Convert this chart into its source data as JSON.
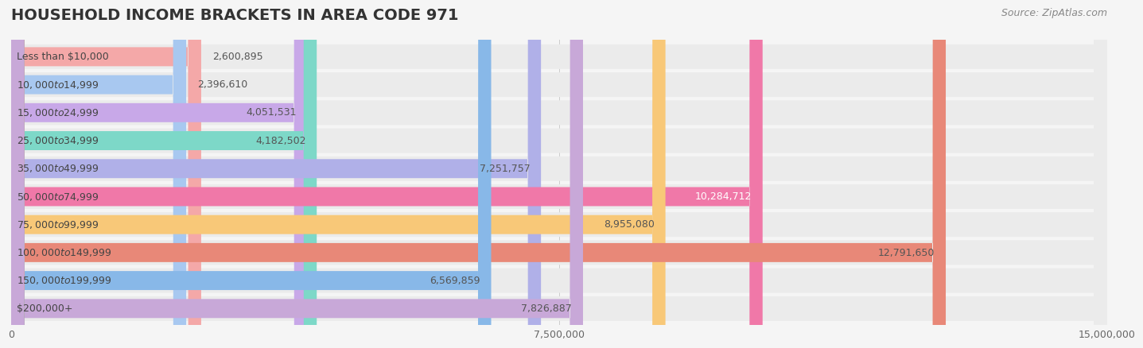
{
  "title": "HOUSEHOLD INCOME BRACKETS IN AREA CODE 971",
  "source": "Source: ZipAtlas.com",
  "categories": [
    "Less than $10,000",
    "$10,000 to $14,999",
    "$15,000 to $24,999",
    "$25,000 to $34,999",
    "$35,000 to $49,999",
    "$50,000 to $74,999",
    "$75,000 to $99,999",
    "$100,000 to $149,999",
    "$150,000 to $199,999",
    "$200,000+"
  ],
  "values": [
    2600895,
    2396610,
    4051531,
    4182502,
    7251757,
    10284712,
    8955080,
    12791650,
    6569859,
    7826887
  ],
  "bar_colors": [
    "#f4a8a8",
    "#a8c8f0",
    "#c8a8e8",
    "#7dd8c8",
    "#b0b0e8",
    "#f078a8",
    "#f8c878",
    "#e88878",
    "#88b8e8",
    "#c8a8d8"
  ],
  "value_labels": [
    "2,600,895",
    "2,396,610",
    "4,051,531",
    "4,182,502",
    "7,251,757",
    "10,284,712",
    "8,955,080",
    "12,791,650",
    "6,569,859",
    "7,826,887"
  ],
  "xlim": [
    0,
    15000000
  ],
  "xticks": [
    0,
    7500000,
    15000000
  ],
  "xtick_labels": [
    "0",
    "7,500,000",
    "15,000,000"
  ],
  "background_color": "#f5f5f5",
  "bar_bg_color": "#ebebeb",
  "title_fontsize": 14,
  "label_fontsize": 9,
  "value_fontsize": 9,
  "source_fontsize": 9
}
